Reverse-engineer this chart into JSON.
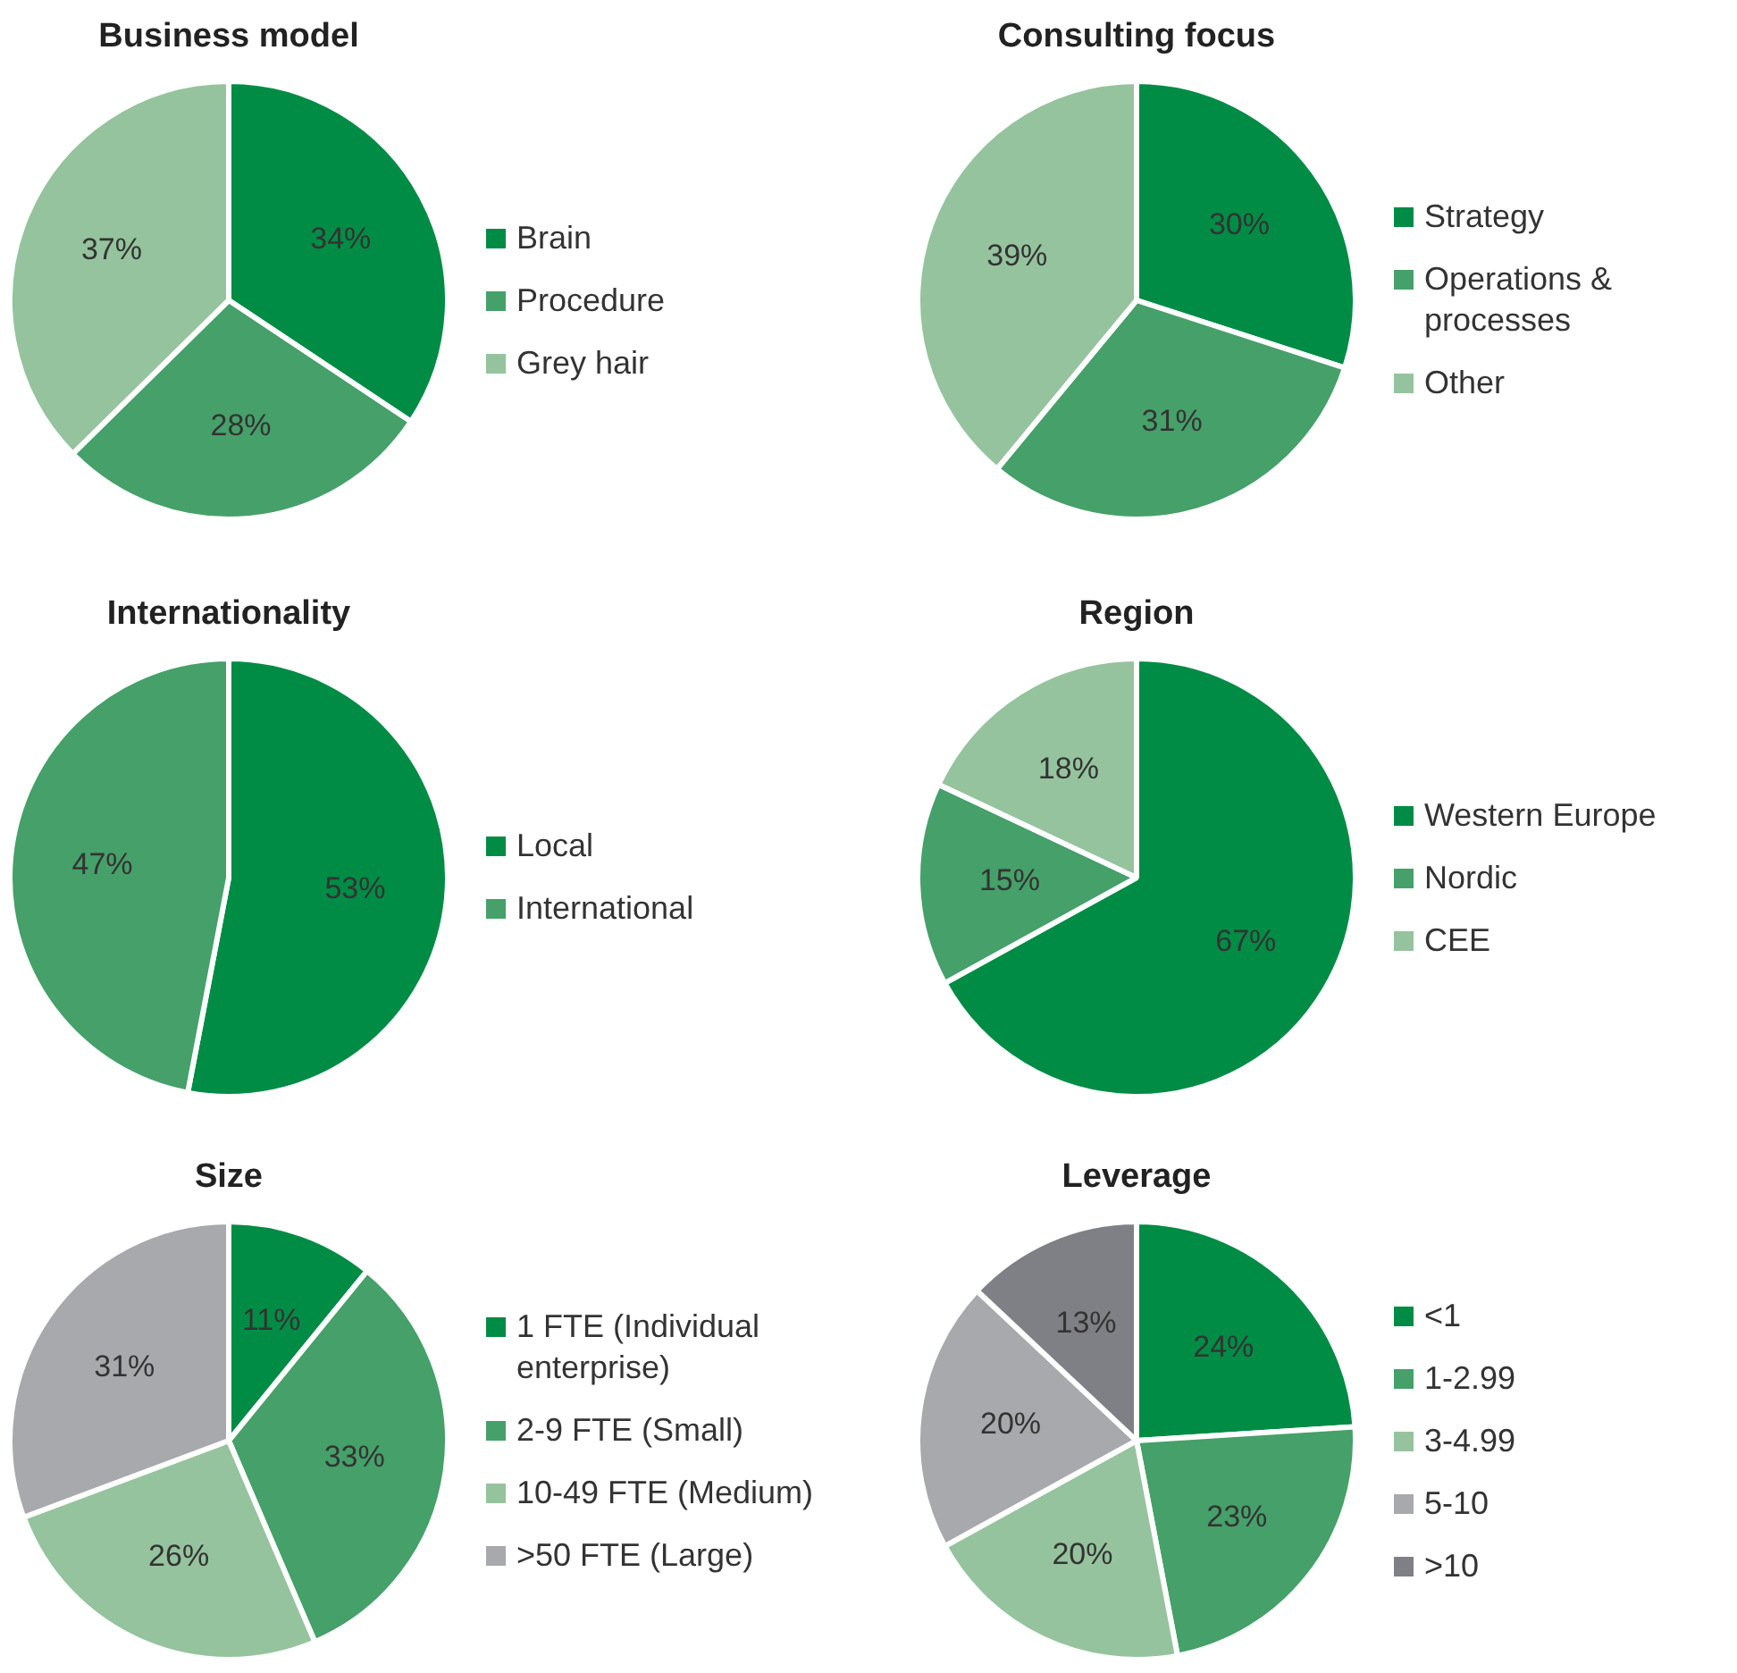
{
  "chart_data": [
    {
      "type": "pie",
      "title": "Business model",
      "categories": [
        "Brain",
        "Procedure",
        "Grey hair"
      ],
      "values": [
        34,
        28,
        37
      ],
      "value_labels": [
        "34%",
        "28%",
        "37%"
      ],
      "colors": [
        "#008c45",
        "#46a069",
        "#95c39d"
      ],
      "legend": "right"
    },
    {
      "type": "pie",
      "title": "Consulting focus",
      "categories": [
        "Strategy",
        "Operations & processes",
        "Other"
      ],
      "values": [
        30,
        31,
        39
      ],
      "value_labels": [
        "30%",
        "31%",
        "39%"
      ],
      "colors": [
        "#008c45",
        "#46a069",
        "#95c39d"
      ],
      "legend": "right"
    },
    {
      "type": "pie",
      "title": "Internationality",
      "categories": [
        "Local",
        "International"
      ],
      "values": [
        53,
        47
      ],
      "value_labels": [
        "53%",
        "47%"
      ],
      "colors": [
        "#008c45",
        "#46a069"
      ],
      "legend": "right"
    },
    {
      "type": "pie",
      "title": "Region",
      "categories": [
        "Western Europe",
        "Nordic",
        "CEE"
      ],
      "values": [
        67,
        15,
        18
      ],
      "value_labels": [
        "67%",
        "15%",
        "18%"
      ],
      "colors": [
        "#008c45",
        "#46a069",
        "#95c39d"
      ],
      "legend": "right"
    },
    {
      "type": "pie",
      "title": "Size",
      "categories": [
        "1 FTE (Individual enterprise)",
        "2-9 FTE (Small)",
        "10-49 FTE (Medium)",
        ">50 FTE (Large)"
      ],
      "values": [
        11,
        33,
        26,
        31
      ],
      "value_labels": [
        "11%",
        "33%",
        "26%",
        "31%"
      ],
      "colors": [
        "#008c45",
        "#46a069",
        "#95c39d",
        "#a7a9ac"
      ],
      "legend": "right"
    },
    {
      "type": "pie",
      "title": "Leverage",
      "categories": [
        "<1",
        "1-2.99",
        "3-4.99",
        "5-10",
        ">10"
      ],
      "values": [
        24,
        23,
        20,
        20,
        13
      ],
      "value_labels": [
        "24%",
        "23%",
        "20%",
        "20%",
        "13%"
      ],
      "colors": [
        "#008c45",
        "#46a069",
        "#95c39d",
        "#a7a9ac",
        "#7f8085"
      ],
      "legend": "right"
    }
  ]
}
